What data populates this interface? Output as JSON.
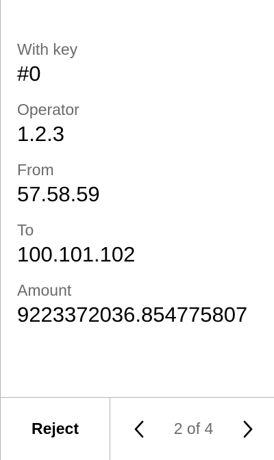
{
  "fields": [
    {
      "label": "With key",
      "value": "#0"
    },
    {
      "label": "Operator",
      "value": "1.2.3"
    },
    {
      "label": "From",
      "value": "57.58.59"
    },
    {
      "label": "To",
      "value": "100.101.102"
    },
    {
      "label": "Amount",
      "value": "9223372036.854775807"
    }
  ],
  "footer": {
    "reject_label": "Reject",
    "page_indicator": "2 of 4",
    "prev_icon": "chevron-left-icon",
    "next_icon": "chevron-right-icon"
  },
  "colors": {
    "label": "#6b6b6b",
    "value": "#000000",
    "divider": "#b3b3b3"
  }
}
